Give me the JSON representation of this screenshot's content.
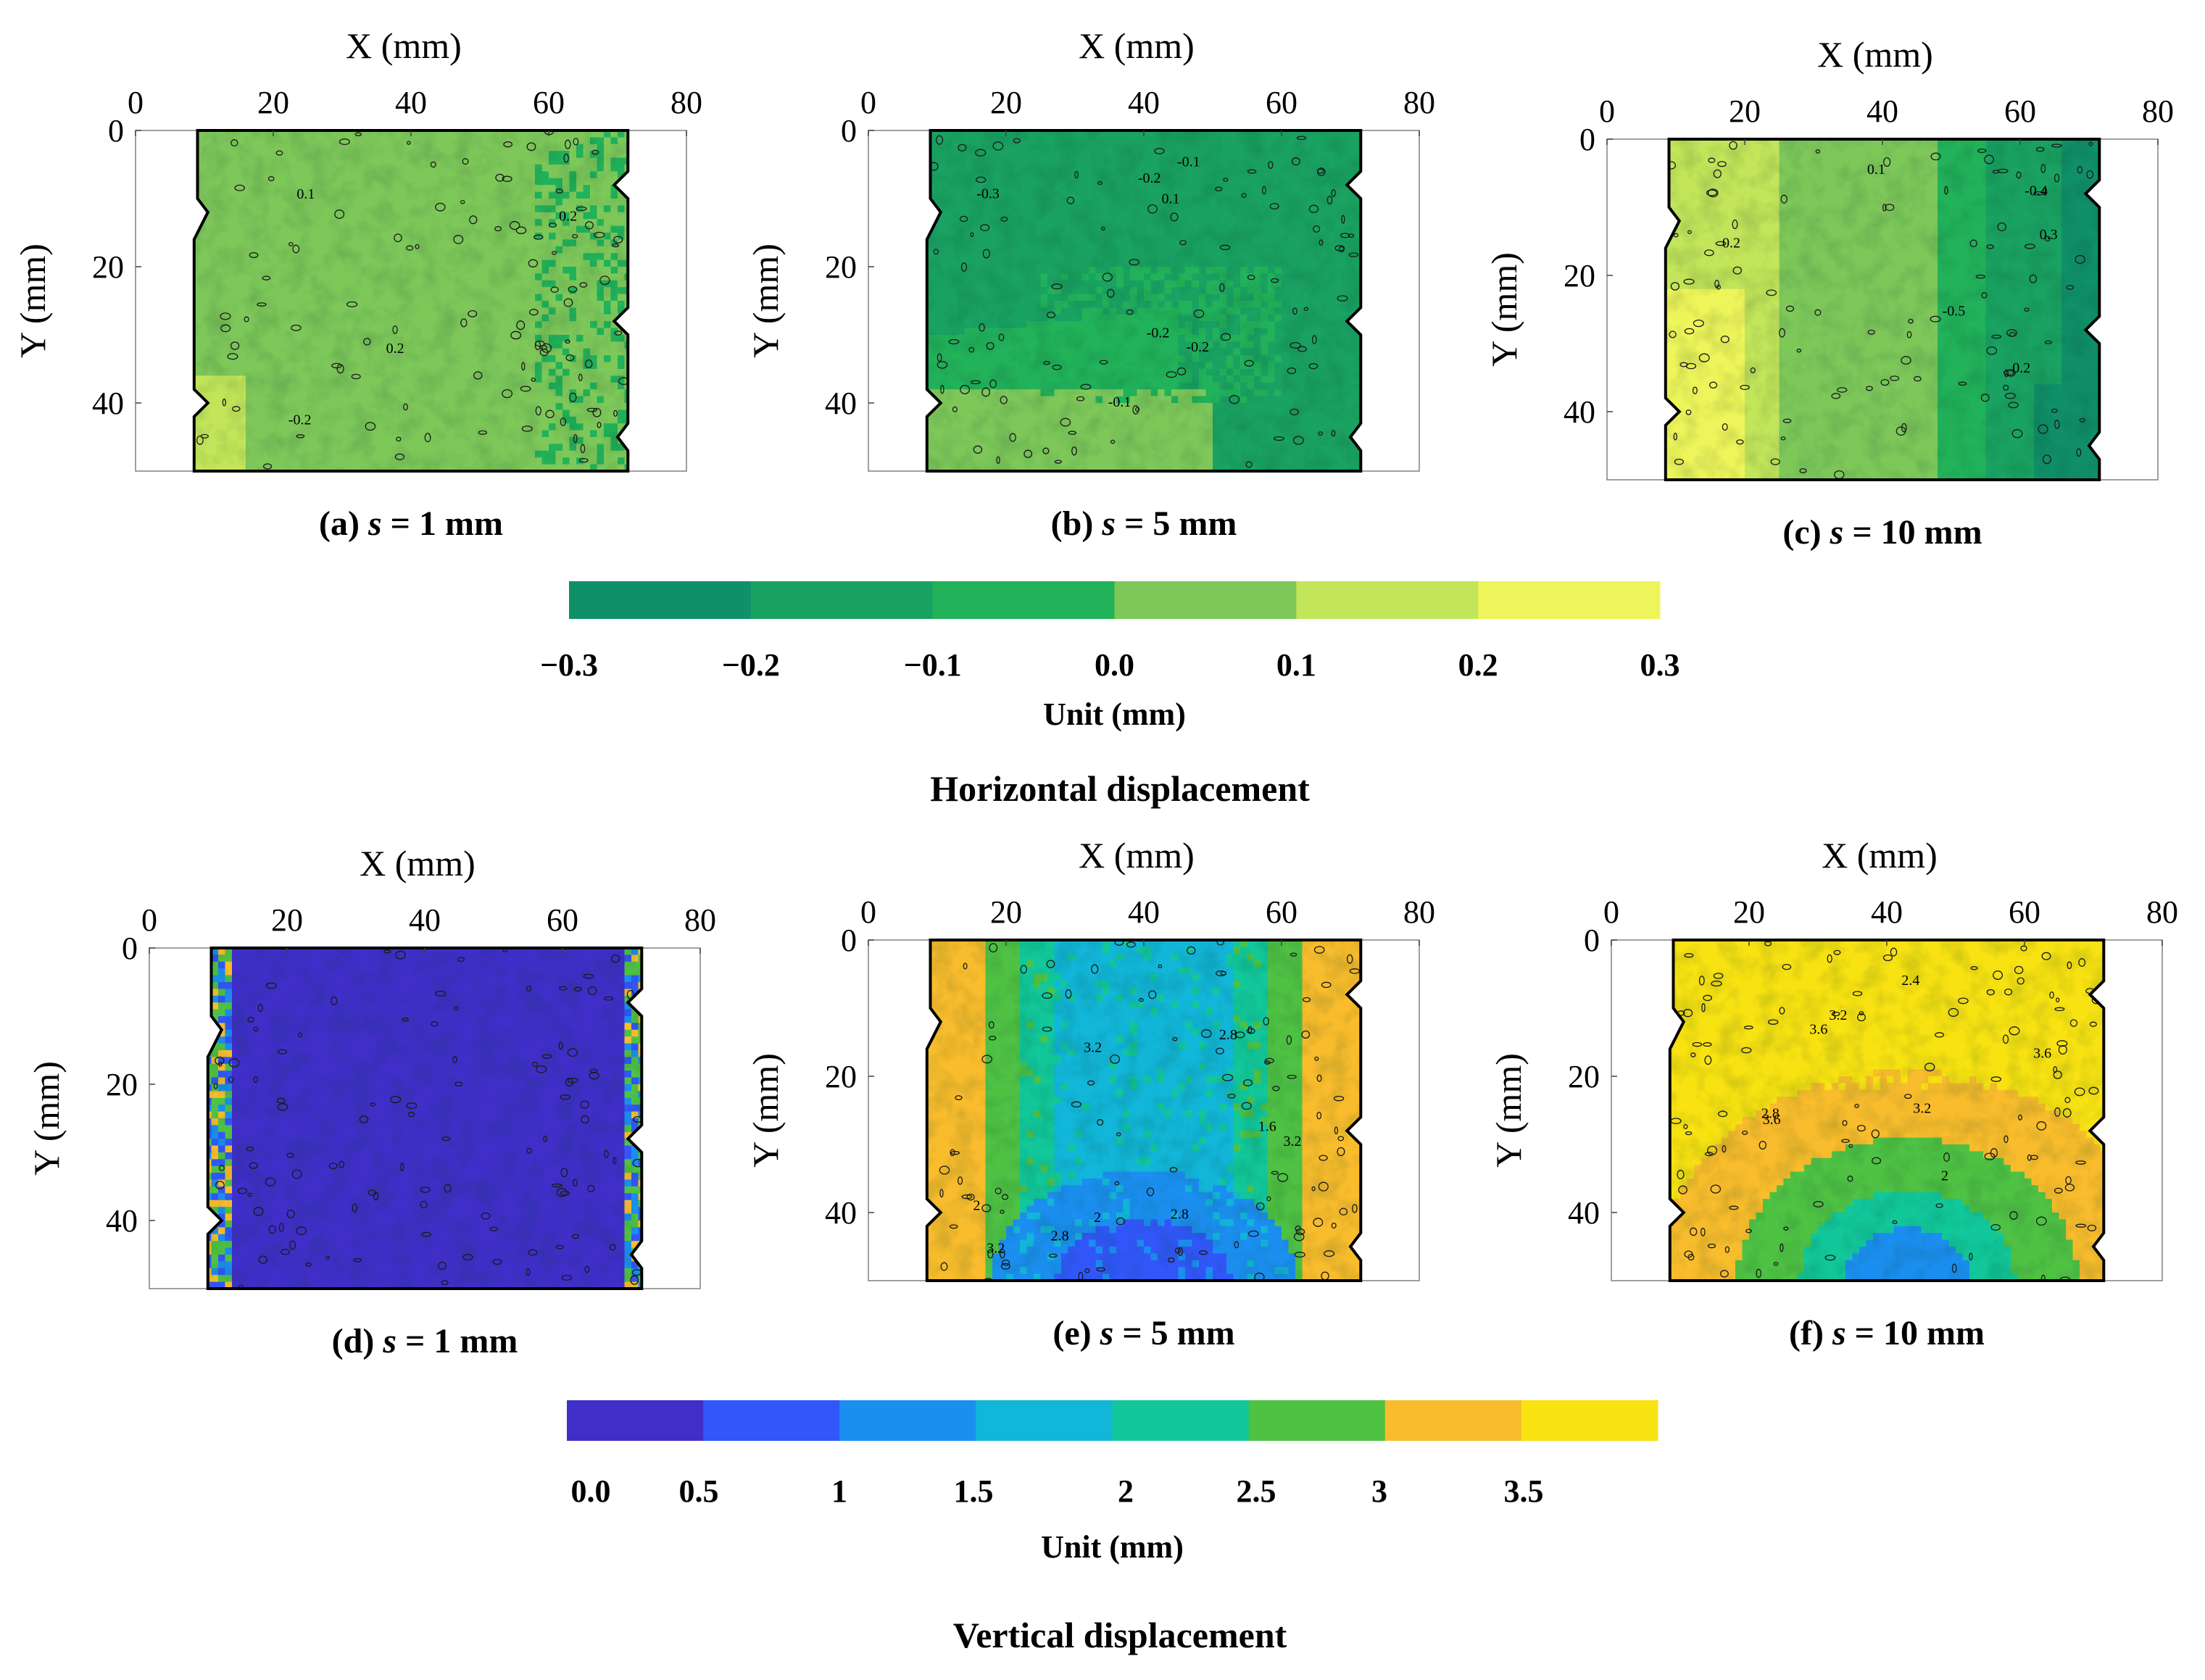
{
  "figure_titles": {
    "horizontal": "Horizontal displacement",
    "vertical": "Vertical displacement"
  },
  "colorbars": {
    "horizontal": {
      "unit_label": "Unit (mm)",
      "tick_labels": [
        "−0.3",
        "−0.2",
        "−0.1",
        "0.0",
        "0.1",
        "0.2",
        "0.3"
      ],
      "colors": [
        "#109068",
        "#1aa262",
        "#22b25a",
        "#7ec85a",
        "#c3e55a",
        "#eef55a"
      ]
    },
    "vertical": {
      "unit_label": "Unit (mm)",
      "tick_labels": [
        "0.0",
        "0.5",
        "1",
        "1.5",
        "2",
        "2.5",
        "3",
        "3.5"
      ],
      "colors": [
        "#3f2fc8",
        "#3157fa",
        "#1b8ff0",
        "#12b6d8",
        "#12c79a",
        "#4fc244",
        "#f8bc2c",
        "#f8e212"
      ]
    }
  },
  "chart_data": [
    {
      "id": "a",
      "type": "heatmap",
      "caption_prefix": "(a) ",
      "caption_var": "s",
      "caption_suffix": " = 1 mm",
      "xlabel": "X (mm)",
      "ylabel": "Y (mm)",
      "xlim": [
        0,
        80
      ],
      "ylim": [
        0,
        50
      ],
      "y_reversed": true,
      "xticks": [
        "0",
        "20",
        "40",
        "60",
        "80"
      ],
      "yticks": [
        "0",
        "20",
        "40"
      ],
      "field": "horizontal displacement",
      "dominant_value": 0.05,
      "labeled_contours": [
        "-0.2",
        "0.1",
        "0.2",
        "0.2"
      ]
    },
    {
      "id": "b",
      "type": "heatmap",
      "caption_prefix": "(b) ",
      "caption_var": "s",
      "caption_suffix": " = 5 mm",
      "xlabel": "X (mm)",
      "ylabel": "Y (mm)",
      "xlim": [
        0,
        80
      ],
      "ylim": [
        0,
        50
      ],
      "y_reversed": true,
      "xticks": [
        "0",
        "20",
        "40",
        "60",
        "80"
      ],
      "yticks": [
        "0",
        "20",
        "40"
      ],
      "field": "horizontal displacement",
      "dominant_value": -0.15,
      "labeled_contours": [
        "-0.3",
        "-0.2",
        "-0.2",
        "-0.2",
        "-0.1",
        "-0.1",
        "0.1"
      ]
    },
    {
      "id": "c",
      "type": "heatmap",
      "caption_prefix": "(c) ",
      "caption_var": "s",
      "caption_suffix": " = 10 mm",
      "xlabel": "X (mm)",
      "ylabel": "Y (mm)",
      "xlim": [
        0,
        80
      ],
      "ylim": [
        0,
        50
      ],
      "y_reversed": true,
      "xticks": [
        "0",
        "20",
        "40",
        "60",
        "80"
      ],
      "yticks": [
        "0",
        "20",
        "40"
      ],
      "field": "horizontal displacement",
      "dominant_value": 0.0,
      "labeled_contours": [
        "0.1",
        "0.2",
        "0.2",
        "0.3",
        "-0.5",
        "-0.4"
      ]
    },
    {
      "id": "d",
      "type": "heatmap",
      "caption_prefix": "(d) ",
      "caption_var": "s",
      "caption_suffix": " = 1 mm",
      "xlabel": "X (mm)",
      "ylabel": "Y (mm)",
      "xlim": [
        0,
        80
      ],
      "ylim": [
        0,
        50
      ],
      "y_reversed": true,
      "xticks": [
        "0",
        "20",
        "40",
        "60",
        "80"
      ],
      "yticks": [
        "0",
        "20",
        "40"
      ],
      "field": "vertical displacement",
      "dominant_value": 0.25,
      "labeled_contours": []
    },
    {
      "id": "e",
      "type": "heatmap",
      "caption_prefix": "(e) ",
      "caption_var": "s",
      "caption_suffix": " = 5 mm",
      "xlabel": "X (mm)",
      "ylabel": "Y (mm)",
      "xlim": [
        0,
        80
      ],
      "ylim": [
        0,
        50
      ],
      "y_reversed": true,
      "xticks": [
        "0",
        "20",
        "40",
        "60",
        "80"
      ],
      "yticks": [
        "0",
        "20",
        "40"
      ],
      "field": "vertical displacement",
      "dominant_value": 1.8,
      "labeled_contours": [
        "3.2",
        "3.2",
        "2.8",
        "2.8",
        "3.2",
        "2.8",
        "2",
        "2",
        "1.6"
      ]
    },
    {
      "id": "f",
      "type": "heatmap",
      "caption_prefix": "(f) ",
      "caption_var": "s",
      "caption_suffix": " = 10 mm",
      "xlabel": "X (mm)",
      "ylabel": "Y (mm)",
      "xlim": [
        0,
        80
      ],
      "ylim": [
        0,
        50
      ],
      "y_reversed": true,
      "xticks": [
        "0",
        "20",
        "40",
        "60",
        "80"
      ],
      "yticks": [
        "0",
        "20",
        "40"
      ],
      "field": "vertical displacement",
      "dominant_value": 3.7,
      "labeled_contours": [
        "3.6",
        "3.6",
        "3.6",
        "3.2",
        "3.2",
        "2.8",
        "2.4",
        "2"
      ]
    }
  ]
}
